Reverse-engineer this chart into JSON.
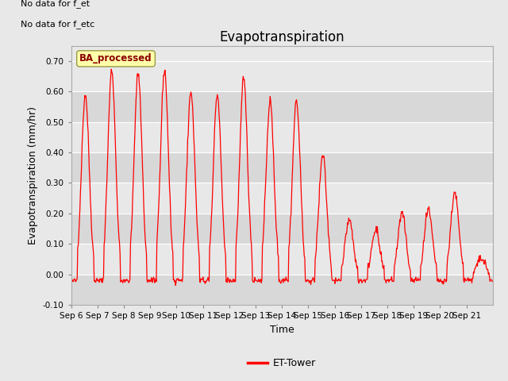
{
  "title": "Evapotranspiration",
  "xlabel": "Time",
  "ylabel": "Evapotranspiration (mm/hr)",
  "ylim": [
    -0.1,
    0.75
  ],
  "yticks": [
    -0.1,
    0.0,
    0.1,
    0.2,
    0.3,
    0.4,
    0.5,
    0.6,
    0.7
  ],
  "bg_color": "#e8e8e8",
  "fig_color": "#e8e8e8",
  "line_color": "#ff0000",
  "legend_label": "ET-Tower",
  "top_left_text1": "No data for f_et",
  "top_left_text2": "No data for f_etc",
  "ba_label": "BA_processed",
  "x_tick_labels": [
    "Sep 6",
    "Sep 7",
    "Sep 8",
    "Sep 9",
    "Sep 10",
    "Sep 11",
    "Sep 12",
    "Sep 13",
    "Sep 14",
    "Sep 15",
    "Sep 16",
    "Sep 17",
    "Sep 18",
    "Sep 19",
    "Sep 20",
    "Sep 21"
  ],
  "num_days": 16,
  "start_day": 6,
  "peaks": [
    0.59,
    0.67,
    0.66,
    0.67,
    0.6,
    0.59,
    0.64,
    0.57,
    0.57,
    0.39,
    0.18,
    0.15,
    0.2,
    0.21,
    0.27,
    0.05
  ],
  "grid_color": "#ffffff",
  "band_colors": [
    "#dcdcdc",
    "#e8e8e8"
  ]
}
